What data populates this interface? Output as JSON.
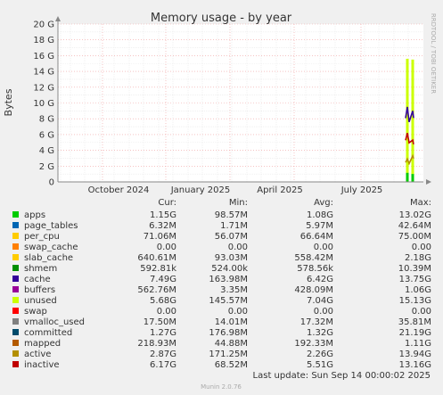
{
  "chart_data": {
    "type": "area",
    "title": "Memory usage - by year",
    "ylabel": "Bytes",
    "xlabel": "",
    "side_label": "RRDTOOL / TOBI OETIKER",
    "ylim": [
      0,
      20
    ],
    "y_unit": "G",
    "y_ticks": [
      "0",
      "2 G",
      "4 G",
      "6 G",
      "8 G",
      "10 G",
      "12 G",
      "14 G",
      "16 G",
      "18 G",
      "20 G"
    ],
    "x_ticks": [
      "October 2024",
      "January 2025",
      "April 2025",
      "July 2025"
    ],
    "grid": true,
    "columns": [
      "Cur:",
      "Min:",
      "Avg:",
      "Max:"
    ],
    "series": [
      {
        "name": "apps",
        "color": "#00cc00",
        "cur": "1.15G",
        "min": "98.57M",
        "avg": "1.08G",
        "max": "13.02G"
      },
      {
        "name": "page_tables",
        "color": "#0066b3",
        "cur": "6.32M",
        "min": "1.71M",
        "avg": "5.97M",
        "max": "42.64M"
      },
      {
        "name": "per_cpu",
        "color": "#ffcc00",
        "cur": "71.06M",
        "min": "56.07M",
        "avg": "66.64M",
        "max": "75.00M"
      },
      {
        "name": "swap_cache",
        "color": "#ff8000",
        "cur": "0.00",
        "min": "0.00",
        "avg": "0.00",
        "max": "0.00"
      },
      {
        "name": "slab_cache",
        "color": "#ffcc00",
        "cur": "640.61M",
        "min": "93.03M",
        "avg": "558.42M",
        "max": "2.18G"
      },
      {
        "name": "shmem",
        "color": "#008f00",
        "cur": "592.81k",
        "min": "524.00k",
        "avg": "578.56k",
        "max": "10.39M"
      },
      {
        "name": "cache",
        "color": "#330099",
        "cur": "7.49G",
        "min": "163.98M",
        "avg": "6.42G",
        "max": "13.75G"
      },
      {
        "name": "buffers",
        "color": "#990099",
        "cur": "562.76M",
        "min": "3.35M",
        "avg": "428.09M",
        "max": "1.06G"
      },
      {
        "name": "unused",
        "color": "#ccff00",
        "cur": "5.68G",
        "min": "145.57M",
        "avg": "7.04G",
        "max": "15.13G"
      },
      {
        "name": "swap",
        "color": "#ff0000",
        "cur": "0.00",
        "min": "0.00",
        "avg": "0.00",
        "max": "0.00"
      },
      {
        "name": "vmalloc_used",
        "color": "#808080",
        "cur": "17.50M",
        "min": "14.01M",
        "avg": "17.32M",
        "max": "35.81M"
      },
      {
        "name": "committed",
        "color": "#004b6b",
        "cur": "1.27G",
        "min": "176.98M",
        "avg": "1.32G",
        "max": "21.19G"
      },
      {
        "name": "mapped",
        "color": "#b35a00",
        "cur": "218.93M",
        "min": "44.88M",
        "avg": "192.33M",
        "max": "1.11G"
      },
      {
        "name": "active",
        "color": "#b38f00",
        "cur": "2.87G",
        "min": "171.25M",
        "avg": "2.26G",
        "max": "13.94G"
      },
      {
        "name": "inactive",
        "color": "#c00000",
        "cur": "6.17G",
        "min": "68.52M",
        "avg": "5.51G",
        "max": "13.16G"
      }
    ],
    "recent_values_G": {
      "unused_stack": [
        15.6,
        15.5
      ],
      "cache_line": [
        9.5,
        9.0
      ],
      "inactive_line": [
        6.2,
        5.3
      ],
      "active_line": [
        2.9,
        3.3
      ],
      "apps_stack": [
        1.15,
        1.0
      ]
    }
  },
  "footer": {
    "last_update": "Last update: Sun Sep 14 00:00:02 2025",
    "munin_version": "Munin 2.0.76"
  }
}
